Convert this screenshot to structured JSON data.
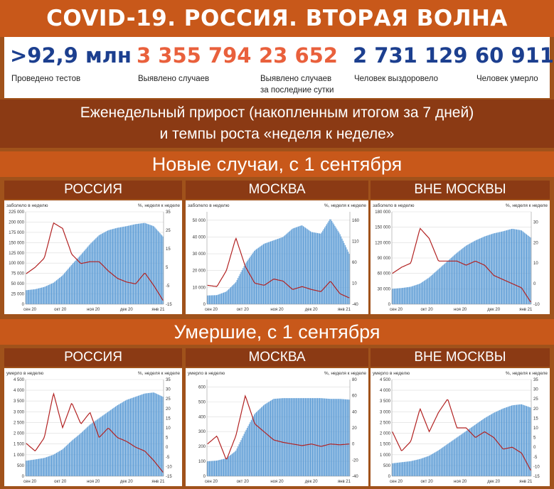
{
  "header": {
    "title": "COVID-19. РОССИЯ. ВТОРАЯ ВОЛНА"
  },
  "stats": [
    {
      "value": ">92,9 млн",
      "label_lines": [
        "Проведено тестов"
      ],
      "color": "#1c3f8f"
    },
    {
      "value": "3 355 794",
      "label_lines": [
        "Выявлено случаев"
      ],
      "color": "#e9603c"
    },
    {
      "value": "23 652",
      "label_lines": [
        "Выявлено случаев",
        "за последние сутки"
      ],
      "color": "#e9603c"
    },
    {
      "value": "2 731 129",
      "label_lines": [
        "Человек выздоровело"
      ],
      "color": "#1c3f8f"
    },
    {
      "value": "60 911",
      "label_lines": [
        "Человек умерло"
      ],
      "color": "#1c3f8f"
    }
  ],
  "subtitle": {
    "line1": "Еженедельный прирост (накопленным итогом за 7 дней)",
    "line2": "и темпы роста «неделя к неделе»"
  },
  "sections": {
    "cases": "Новые случаи, с 1 сентября",
    "deaths": "Умершие, с 1 сентября"
  },
  "regions": [
    "РОССИЯ",
    "МОСКВА",
    "ВНЕ МОСКВЫ"
  ],
  "colors": {
    "bars": "#5b9bd5",
    "line": "#b22222"
  },
  "chart_data": [
    {
      "id": "cases-russia",
      "type": "bar+line",
      "left_axis_label": "заболело в неделю",
      "right_axis_label": "%, неделя к неделе",
      "left_ticks": [
        "0",
        "25 000",
        "50 000",
        "75 000",
        "100 000",
        "125 000",
        "150 000",
        "175 000",
        "200 000",
        "225 000"
      ],
      "left_range": [
        0,
        225000
      ],
      "right_ticks": [
        "-15",
        "-5",
        "5",
        "15",
        "25",
        "35"
      ],
      "right_range": [
        -15,
        35
      ],
      "x_ticks": [
        "сен 20",
        "окт 20",
        "ноя 20",
        "дек 20",
        "янв 21"
      ],
      "bars_weekly": [
        34000,
        36500,
        42000,
        52000,
        70000,
        96000,
        120000,
        146000,
        168000,
        180000,
        186000,
        190000,
        195000,
        198000,
        190000,
        165000
      ],
      "growth_line": [
        1.5,
        5,
        10,
        29,
        26,
        12,
        7,
        8,
        8,
        3,
        -1,
        -3,
        -4,
        2,
        -5,
        -13
      ]
    },
    {
      "id": "cases-moscow",
      "type": "bar+line",
      "left_axis_label": "заболело в неделю",
      "right_axis_label": "%, неделя к неделе",
      "left_ticks": [
        "0",
        "10 000",
        "20 000",
        "30 000",
        "40 000",
        "50 000"
      ],
      "left_range": [
        0,
        55000
      ],
      "right_ticks": [
        "-40",
        "10",
        "60",
        "110",
        "160"
      ],
      "right_range": [
        -40,
        180
      ],
      "x_ticks": [
        "сен 20",
        "окт 20",
        "ноя 20",
        "дек 20",
        "янв 21"
      ],
      "bars_weekly": [
        5200,
        5400,
        7500,
        13000,
        24000,
        32000,
        36000,
        38000,
        40000,
        45000,
        47000,
        43000,
        42000,
        51000,
        42000,
        30000
      ],
      "growth_line": [
        5,
        2,
        40,
        118,
        50,
        10,
        5,
        20,
        15,
        -5,
        2,
        -5,
        -10,
        15,
        -15,
        -25
      ]
    },
    {
      "id": "cases-outside",
      "type": "bar+line",
      "left_axis_label": "заболело в неделю",
      "right_axis_label": "%, неделя к неделе",
      "left_ticks": [
        "0",
        "30 000",
        "60 000",
        "90 000",
        "120 000",
        "150 000",
        "180 000"
      ],
      "left_range": [
        0,
        180000
      ],
      "right_ticks": [
        "-10",
        "0",
        "10",
        "20",
        "30"
      ],
      "right_range": [
        -10,
        35
      ],
      "x_ticks": [
        "сен 20",
        "окт 20",
        "ноя 20",
        "дек 20",
        "янв 21"
      ],
      "bars_weekly": [
        30000,
        31500,
        34000,
        40000,
        52000,
        68000,
        84000,
        100000,
        114000,
        124000,
        132000,
        138000,
        142000,
        147000,
        144000,
        130000
      ],
      "growth_line": [
        5,
        8,
        10,
        27,
        22,
        11,
        11,
        11,
        9,
        11,
        9,
        4,
        2,
        0,
        -2,
        -9
      ]
    },
    {
      "id": "deaths-russia",
      "type": "bar+line",
      "left_axis_label": "умерло в неделю",
      "right_axis_label": "%, неделя к неделе",
      "left_ticks": [
        "0",
        "500",
        "1 000",
        "1 500",
        "2 000",
        "2 500",
        "3 000",
        "3 500",
        "4 000",
        "4 500"
      ],
      "left_range": [
        0,
        4500
      ],
      "right_ticks": [
        "-15",
        "-10",
        "-5",
        "0",
        "5",
        "10",
        "15",
        "20",
        "25",
        "30",
        "35"
      ],
      "right_range": [
        -15,
        35
      ],
      "x_ticks": [
        "сен 20",
        "окт 20",
        "ноя 20",
        "дек 20",
        "янв 21"
      ],
      "bars_weekly": [
        720,
        780,
        850,
        1000,
        1250,
        1650,
        2000,
        2400,
        2700,
        3000,
        3300,
        3550,
        3700,
        3850,
        3900,
        3700
      ],
      "growth_line": [
        2,
        -2,
        5,
        28,
        10,
        23,
        12,
        18,
        5,
        10,
        5,
        3,
        0,
        -2,
        -7,
        -13
      ]
    },
    {
      "id": "deaths-moscow",
      "type": "bar+line",
      "left_axis_label": "умерло в неделю",
      "right_axis_label": "%, неделя к неделе",
      "left_ticks": [
        "0",
        "100",
        "200",
        "300",
        "400",
        "500",
        "600"
      ],
      "left_range": [
        0,
        650
      ],
      "right_ticks": [
        "-40",
        "-20",
        "0",
        "20",
        "40",
        "60",
        "80"
      ],
      "right_range": [
        -40,
        80
      ],
      "x_ticks": [
        "сен 20",
        "окт 20",
        "ноя 20",
        "дек 20",
        "янв 21"
      ],
      "bars_weekly": [
        100,
        105,
        120,
        170,
        300,
        420,
        480,
        520,
        525,
        525,
        525,
        525,
        525,
        520,
        520,
        515
      ],
      "growth_line": [
        0,
        10,
        -20,
        10,
        60,
        25,
        15,
        5,
        2,
        0,
        -2,
        0,
        -3,
        0,
        -1,
        0
      ]
    },
    {
      "id": "deaths-outside",
      "type": "bar+line",
      "left_axis_label": "умерло в неделю",
      "right_axis_label": "%, неделя к неделе",
      "left_ticks": [
        "0",
        "500",
        "1 000",
        "1 500",
        "2 000",
        "2 500",
        "3 000",
        "3 500",
        "4 000",
        "4 500"
      ],
      "left_range": [
        0,
        4500
      ],
      "right_ticks": [
        "-15",
        "-10",
        "-5",
        "0",
        "5",
        "10",
        "15",
        "20",
        "25",
        "30",
        "35"
      ],
      "right_range": [
        -15,
        35
      ],
      "x_ticks": [
        "сен 20",
        "окт 20",
        "ноя 20",
        "дек 20",
        "янв 21"
      ],
      "bars_weekly": [
        600,
        650,
        700,
        800,
        950,
        1200,
        1500,
        1800,
        2100,
        2400,
        2700,
        2950,
        3150,
        3300,
        3350,
        3200
      ],
      "growth_line": [
        8,
        -2,
        3,
        20,
        8,
        18,
        25,
        10,
        10,
        5,
        8,
        5,
        -1,
        0,
        -3,
        -12
      ]
    }
  ]
}
